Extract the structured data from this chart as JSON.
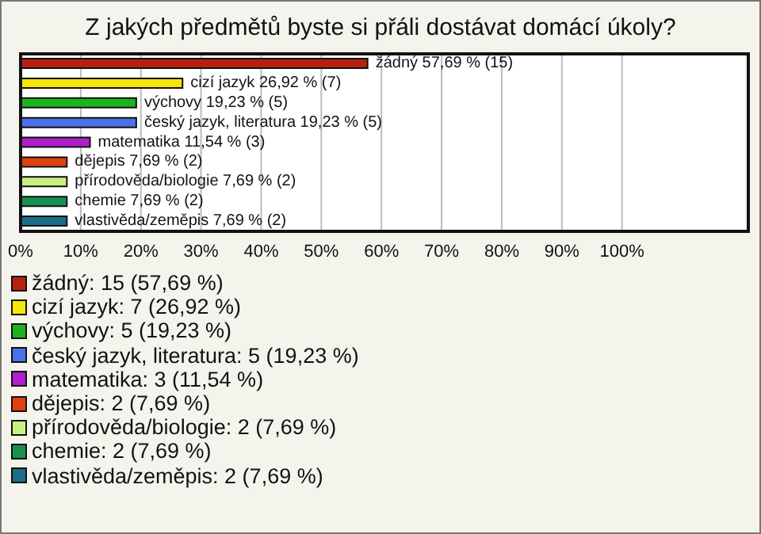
{
  "chart_data": {
    "type": "bar",
    "orientation": "horizontal",
    "title": "Z jakých předmětů byste si přáli dostávat domácí úkoly?",
    "categories": [
      null,
      null,
      null,
      null,
      null,
      null,
      null,
      null,
      null
    ],
    "values": [
      57.69,
      26.92,
      19.23,
      19.23,
      11.54,
      7.69,
      7.69,
      7.69,
      7.69
    ],
    "value_labels": [
      "žádný 57,69 % (15)",
      "cizí jazyk 26,92 % (7)",
      "výchovy 19,23 % (5)",
      "český jazyk, literatura 19,23 % (5)",
      "matematika 11,54 % (3)",
      "dějepis 7,69 % (2)",
      "přírodověda/biologie 7,69 % (2)",
      "chemie 7,69 % (2)",
      "vlastivěda/zeměpis 7,69 % (2)"
    ],
    "colors": [
      "#b8200e",
      "#f5e60a",
      "#1cb41c",
      "#4a72e6",
      "#b020c8",
      "#e0420e",
      "#c8f280",
      "#189050",
      "#1a6e88"
    ],
    "xlim": [
      0,
      121
    ],
    "xticks": [
      {
        "value": 0,
        "label": "0%"
      },
      {
        "value": 10,
        "label": "10%"
      },
      {
        "value": 20,
        "label": "20%"
      },
      {
        "value": 30,
        "label": "30%"
      },
      {
        "value": 40,
        "label": "40%"
      },
      {
        "value": 50,
        "label": "50%"
      },
      {
        "value": 60,
        "label": "60%"
      },
      {
        "value": 70,
        "label": "70%"
      },
      {
        "value": 80,
        "label": "80%"
      },
      {
        "value": 90,
        "label": "90%"
      },
      {
        "value": 100,
        "label": "100%"
      }
    ],
    "grid": "x",
    "annotations": [
      "žádný: 15 (57,69 %)",
      "cizí jazyk: 7 (26,92 %)",
      "výchovy: 5 (19,23 %)",
      "český jazyk, literatura: 5 (19,23 %)",
      "matematika: 3 (11,54 %)",
      "dějepis: 2 (7,69 %)",
      "přírodověda/biologie: 2 (7,69 %)",
      "chemie: 2 (7,69 %)",
      "vlastivěda/zeměpis: 2 (7,69 %)"
    ]
  }
}
